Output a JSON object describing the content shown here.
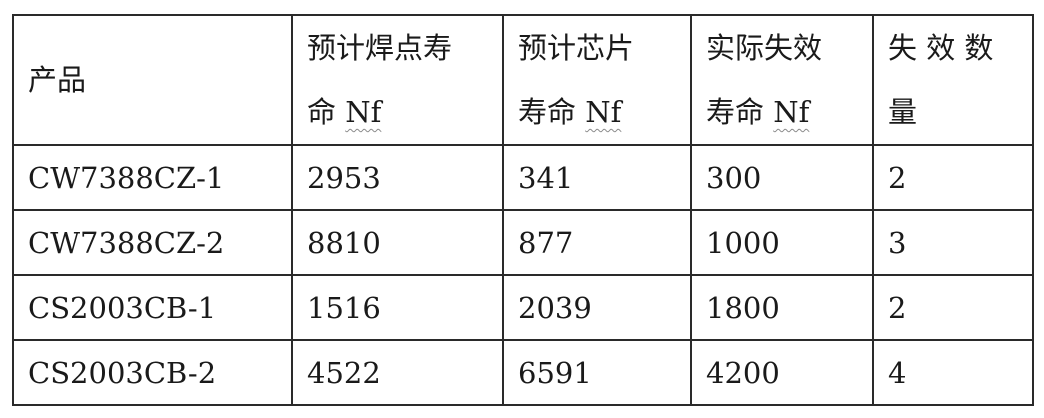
{
  "headers": [
    {
      "line1": "产品",
      "line2": "",
      "nf": ""
    },
    {
      "line1": "预计焊点寿",
      "line2": "命 ",
      "nf": "Nf"
    },
    {
      "line1": "预计芯片",
      "line2": "寿命 ",
      "nf": "Nf"
    },
    {
      "line1": "实际失效",
      "line2": "寿命 ",
      "nf": "Nf"
    },
    {
      "line1": "失 效 数",
      "line2": "量",
      "nf": ""
    }
  ],
  "rows": [
    [
      "CW7388CZ-1",
      "2953",
      "341",
      "300",
      "2"
    ],
    [
      "CW7388CZ-2",
      "8810",
      "877",
      "1000",
      "3"
    ],
    [
      "CS2003CB-1",
      "1516",
      "2039",
      "1800",
      "2"
    ],
    [
      "CS2003CB-2",
      "4522",
      "6591",
      "4200",
      "4"
    ]
  ]
}
